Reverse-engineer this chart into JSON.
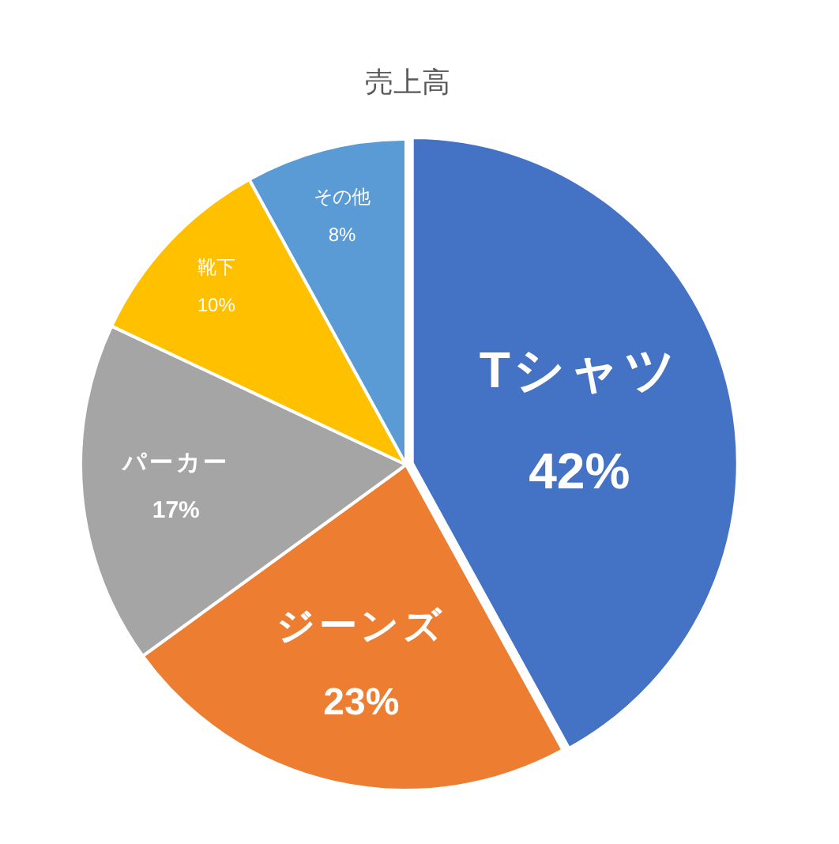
{
  "chart_data": {
    "type": "pie",
    "title": "売上高",
    "categories": [
      "Tシャツ",
      "ジーンズ",
      "パーカー",
      "靴下",
      "その他"
    ],
    "values": [
      42,
      23,
      17,
      10,
      8
    ],
    "value_labels": [
      "42%",
      "23%",
      "17%",
      "10%",
      "8%"
    ],
    "colors": [
      "#4472c4",
      "#ed7d31",
      "#a5a5a5",
      "#ffc000",
      "#5b9bd5"
    ]
  }
}
